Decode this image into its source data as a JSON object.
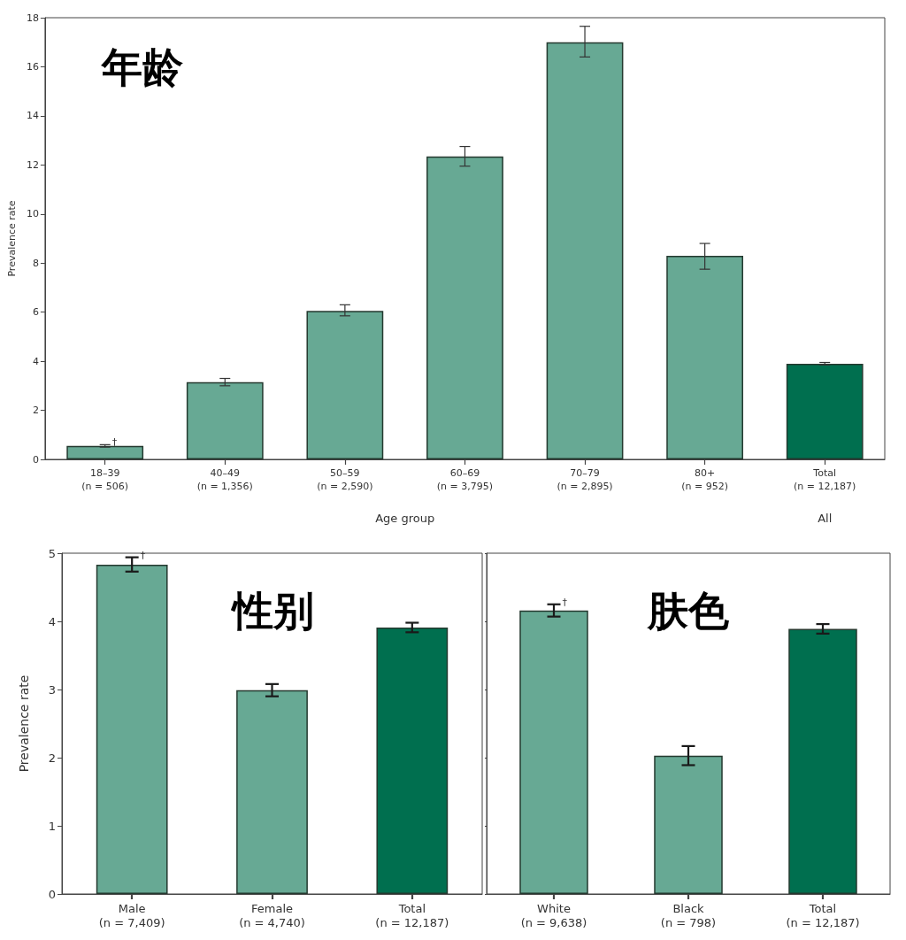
{
  "chart_data": [
    {
      "type": "bar",
      "title": "年龄",
      "categories": [
        "18–39\n(n = 506)",
        "40–49\n(n = 1,356)",
        "50–59\n(n = 2,590)",
        "60–69\n(n = 3,795)",
        "70–79\n(n = 2,895)",
        "80+\n(n = 952)",
        "Total\n(n = 12,187)"
      ],
      "values": [
        0.55,
        3.15,
        6.05,
        12.35,
        17.0,
        8.3,
        3.9
      ],
      "colors": [
        "#67a994",
        "#67a994",
        "#67a994",
        "#67a994",
        "#67a994",
        "#67a994",
        "#006f4f"
      ],
      "errors": [
        [
          0.5,
          0.6
        ],
        [
          3.0,
          3.3
        ],
        [
          5.85,
          6.3
        ],
        [
          11.95,
          12.75
        ],
        [
          16.4,
          17.65
        ],
        [
          7.75,
          8.8
        ],
        [
          3.85,
          3.95
        ]
      ],
      "ylim": [
        0,
        18
      ],
      "yticks": [
        0,
        2,
        4,
        6,
        8,
        10,
        12,
        14,
        16,
        18
      ],
      "ylabel": "Prevalence rate",
      "xlabel": "Age group",
      "annotations": [
        {
          "text": "†",
          "x": "18–39\n(n = 506)",
          "y": 0.6
        },
        "All"
      ]
    },
    {
      "type": "bar",
      "title": "性别",
      "categories": [
        "Male\n(n = 7,409)",
        "Female\n(n = 4,740)",
        "Total\n(n = 12,187)"
      ],
      "values": [
        4.83,
        2.99,
        3.91
      ],
      "colors": [
        "#67a994",
        "#67a994",
        "#006f4f"
      ],
      "errors": [
        [
          4.73,
          4.94
        ],
        [
          2.9,
          3.08
        ],
        [
          3.84,
          3.98
        ]
      ],
      "ylim": [
        0,
        5
      ],
      "yticks": [
        0,
        1,
        2,
        3,
        4,
        5
      ],
      "ylabel": "Prevalence rate",
      "annotations": [
        {
          "text": "†",
          "x": "Male\n(n = 7,409)",
          "y": 4.94
        }
      ]
    },
    {
      "type": "bar",
      "title": "肤色",
      "categories": [
        "White\n(n = 9,638)",
        "Black\n(n = 798)",
        "Total\n(n = 12,187)"
      ],
      "values": [
        4.16,
        2.03,
        3.89
      ],
      "colors": [
        "#67a994",
        "#67a994",
        "#006f4f"
      ],
      "errors": [
        [
          4.07,
          4.25
        ],
        [
          1.89,
          2.17
        ],
        [
          3.82,
          3.96
        ]
      ],
      "ylim": [
        0,
        5
      ],
      "yticks": [
        0,
        1,
        2,
        3,
        4,
        5
      ],
      "tick_labels": "x",
      "annotations": [
        {
          "text": "†",
          "x": "White\n(n = 9,638)",
          "y": 4.25
        }
      ]
    }
  ]
}
